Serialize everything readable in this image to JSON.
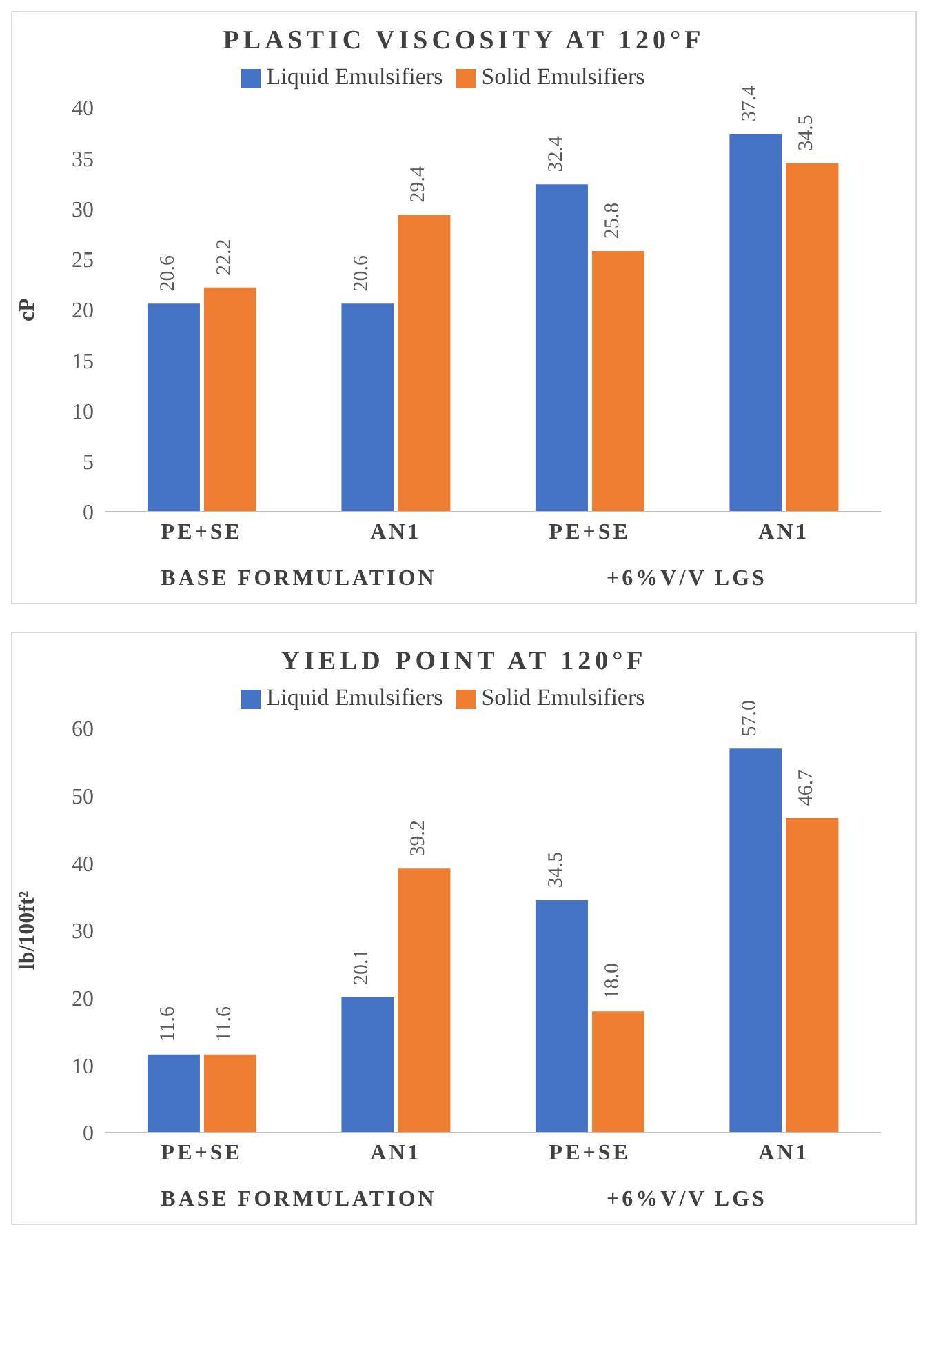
{
  "chart_data": [
    {
      "type": "bar",
      "title": "PLASTIC VISCOSITY AT 120°F",
      "ylabel": "cP",
      "categories": [
        "PE+SE",
        "AN1",
        "PE+SE",
        "AN1"
      ],
      "series": [
        {
          "name": "Liquid Emulsifiers",
          "color": "#4472c4",
          "values": [
            20.6,
            20.6,
            32.4,
            37.4
          ]
        },
        {
          "name": "Solid Emulsifiers",
          "color": "#ed7d31",
          "values": [
            22.2,
            29.4,
            25.8,
            34.5
          ]
        }
      ],
      "ylim": [
        0,
        40
      ],
      "yticks": [
        0,
        5,
        10,
        15,
        20,
        25,
        30,
        35,
        40
      ],
      "legend": "top",
      "data_labels": true,
      "annotations": [
        "BASE FORMULATION",
        "+6%V/V LGS"
      ]
    },
    {
      "type": "bar",
      "title": "YIELD POINT AT 120°F",
      "ylabel": "lb/100ft²",
      "categories": [
        "PE+SE",
        "AN1",
        "PE+SE",
        "AN1"
      ],
      "series": [
        {
          "name": "Liquid Emulsifiers",
          "color": "#4472c4",
          "values": [
            11.6,
            20.1,
            34.5,
            57.0
          ],
          "value_labels": [
            "11.6",
            "20.1",
            "34.5",
            "57.0"
          ]
        },
        {
          "name": "Solid Emulsifiers",
          "color": "#ed7d31",
          "values": [
            11.6,
            39.2,
            18.0,
            46.7
          ],
          "value_labels": [
            "11.6",
            "39.2",
            "18.0",
            "46.7"
          ]
        }
      ],
      "ylim": [
        0,
        60
      ],
      "yticks": [
        0,
        10,
        20,
        30,
        40,
        50,
        60
      ],
      "legend": "top",
      "annotations": [
        "BASE FORMULATION",
        "+6%V/V LGS"
      ]
    }
  ]
}
